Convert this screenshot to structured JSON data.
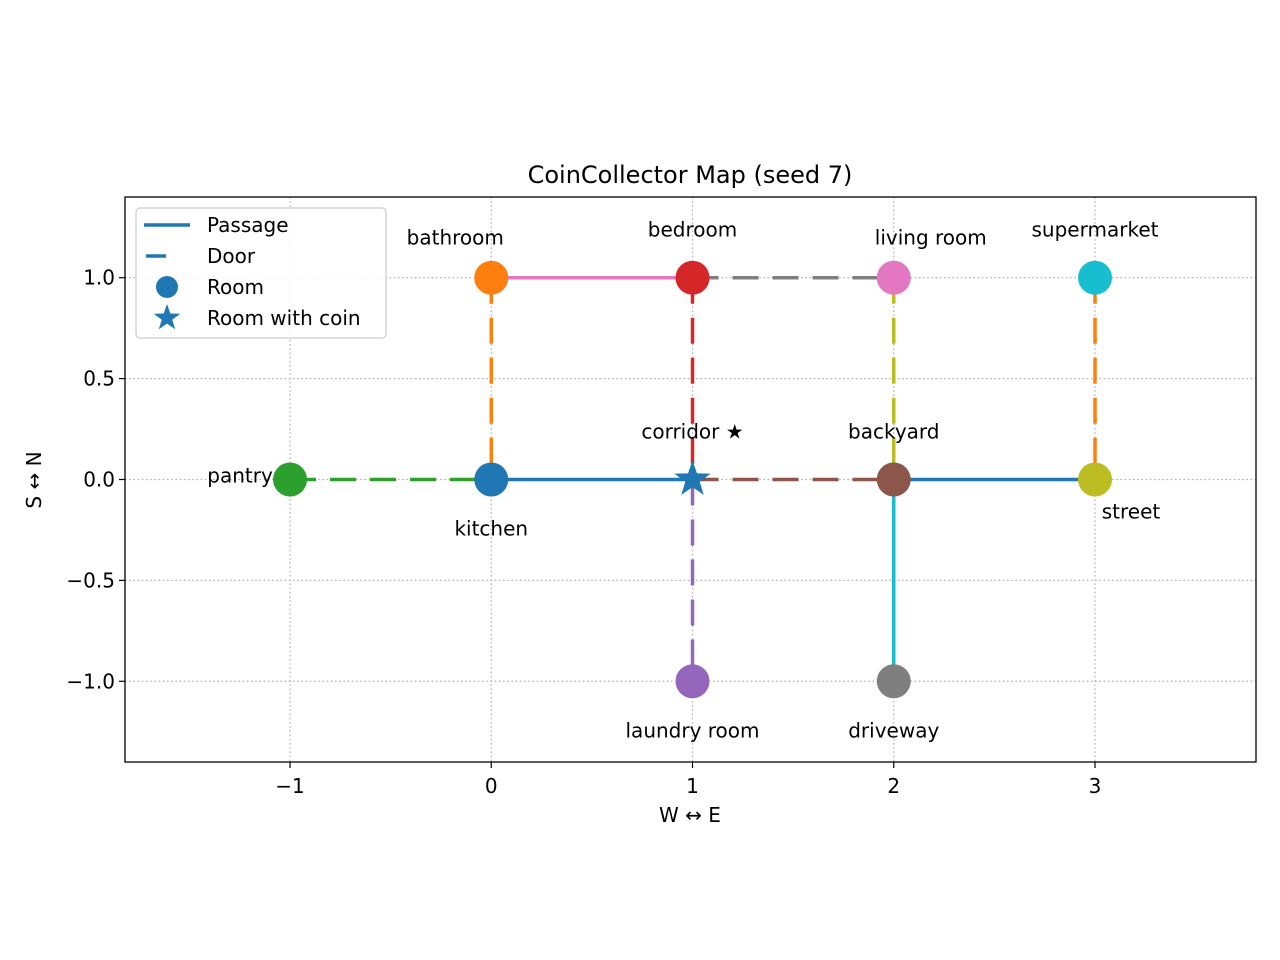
{
  "chart_data": {
    "type": "scatter",
    "title": "CoinCollector Map (seed 7)",
    "xlabel": "W ↔ E",
    "ylabel": "S ↔ N",
    "xlim": [
      -1.82,
      3.8
    ],
    "ylim": [
      -1.4,
      1.4
    ],
    "x_ticks": [
      -1,
      0,
      1,
      2,
      3
    ],
    "x_tick_labels": [
      "−1",
      "0",
      "1",
      "2",
      "3"
    ],
    "y_ticks": [
      -1.0,
      -0.5,
      0.0,
      0.5,
      1.0
    ],
    "y_tick_labels": [
      "−1.0",
      "−0.5",
      "0.0",
      "0.5",
      "1.0"
    ],
    "grid": true,
    "legend_position": "top-left",
    "legend": [
      {
        "label": "Passage",
        "symbol": "solid-line"
      },
      {
        "label": "Door",
        "symbol": "dash"
      },
      {
        "label": "Room",
        "symbol": "circle"
      },
      {
        "label": "Room with coin",
        "symbol": "star"
      }
    ],
    "legend_color": "#1f77b4",
    "rooms": [
      {
        "name": "bathroom",
        "label": "bathroom",
        "x": 0,
        "y": 1,
        "color": "#ff7f0e",
        "coin": false,
        "label_pos": "above-left"
      },
      {
        "name": "bedroom",
        "label": "bedroom",
        "x": 1,
        "y": 1,
        "color": "#d62728",
        "coin": false,
        "label_pos": "above-high"
      },
      {
        "name": "living-room",
        "label": "living room",
        "x": 2,
        "y": 1,
        "color": "#e377c2",
        "coin": false,
        "label_pos": "above-right"
      },
      {
        "name": "supermarket",
        "label": "supermarket",
        "x": 3,
        "y": 1,
        "color": "#17becf",
        "coin": false,
        "label_pos": "above-high"
      },
      {
        "name": "pantry",
        "label": "pantry",
        "x": -1,
        "y": 0,
        "color": "#2ca02c",
        "coin": false,
        "label_pos": "left"
      },
      {
        "name": "kitchen",
        "label": "kitchen",
        "x": 0,
        "y": 0,
        "color": "#1f77b4",
        "coin": false,
        "label_pos": "below"
      },
      {
        "name": "corridor",
        "label": "corridor ★",
        "x": 1,
        "y": 0,
        "color": "#1f77b4",
        "coin": true,
        "label_pos": "above"
      },
      {
        "name": "backyard",
        "label": "backyard",
        "x": 2,
        "y": 0,
        "color": "#8c564b",
        "coin": false,
        "label_pos": "above"
      },
      {
        "name": "street",
        "label": "street",
        "x": 3,
        "y": 0,
        "color": "#bcbd22",
        "coin": false,
        "label_pos": "below-right"
      },
      {
        "name": "laundry-room",
        "label": "laundry room",
        "x": 1,
        "y": -1,
        "color": "#9467bd",
        "coin": false,
        "label_pos": "below"
      },
      {
        "name": "driveway",
        "label": "driveway",
        "x": 2,
        "y": -1,
        "color": "#7f7f7f",
        "coin": false,
        "label_pos": "below"
      }
    ],
    "connections": [
      {
        "from": [
          0,
          1
        ],
        "to": [
          1,
          1
        ],
        "kind": "passage",
        "color": "#e377c2"
      },
      {
        "from": [
          1,
          1
        ],
        "to": [
          2,
          1
        ],
        "kind": "door",
        "color": "#7f7f7f"
      },
      {
        "from": [
          0,
          1
        ],
        "to": [
          0,
          0
        ],
        "kind": "door",
        "color": "#ff7f0e"
      },
      {
        "from": [
          1,
          1
        ],
        "to": [
          1,
          0
        ],
        "kind": "door",
        "color": "#d62728"
      },
      {
        "from": [
          2,
          1
        ],
        "to": [
          2,
          0
        ],
        "kind": "door",
        "color": "#bcbd22"
      },
      {
        "from": [
          3,
          1
        ],
        "to": [
          3,
          0
        ],
        "kind": "door",
        "color": "#ff7f0e"
      },
      {
        "from": [
          -1,
          0
        ],
        "to": [
          0,
          0
        ],
        "kind": "door",
        "color": "#2ca02c"
      },
      {
        "from": [
          0,
          0
        ],
        "to": [
          1,
          0
        ],
        "kind": "passage",
        "color": "#1f77b4"
      },
      {
        "from": [
          1,
          0
        ],
        "to": [
          2,
          0
        ],
        "kind": "door",
        "color": "#8c564b"
      },
      {
        "from": [
          2,
          0
        ],
        "to": [
          3,
          0
        ],
        "kind": "passage",
        "color": "#1f77b4"
      },
      {
        "from": [
          1,
          0
        ],
        "to": [
          1,
          -1
        ],
        "kind": "door",
        "color": "#9467bd"
      },
      {
        "from": [
          2,
          0
        ],
        "to": [
          2,
          -1
        ],
        "kind": "passage",
        "color": "#17becf"
      }
    ]
  }
}
